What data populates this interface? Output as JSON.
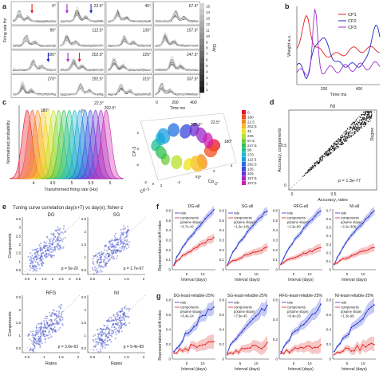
{
  "panel_letters": {
    "a": "a",
    "b": "b",
    "c": "c",
    "d": "d",
    "e": "e",
    "f": "f",
    "g": "g"
  },
  "panel_a": {
    "ylabel": "Firing rate Hz",
    "angles": [
      "0°",
      "22.5°",
      "45°",
      "67.5°",
      "90°",
      "112.5°",
      "135°",
      "157.5°",
      "180°",
      "202.5°",
      "225°",
      "247.5°",
      "270°",
      "292.5°",
      "315°",
      "337.5°"
    ],
    "colorbar_label": "Day",
    "colorbar_ticks": [
      "1",
      "2",
      "3",
      "4",
      "5",
      "6",
      "7",
      "8",
      "9",
      "10",
      "11",
      "12",
      "13",
      "14",
      "15"
    ],
    "x_ticks": [
      "0",
      "200",
      "400"
    ],
    "xlabel": "Time ms",
    "arrows": [
      {
        "cell": 0,
        "color": "#e02020"
      },
      {
        "cell": 1,
        "color": "#a030d0"
      },
      {
        "cell": 1,
        "color": "#1a2ac0"
      },
      {
        "cell": 8,
        "color": "#1a2ac0"
      },
      {
        "cell": 9,
        "color": "#a030d0"
      },
      {
        "cell": 9,
        "color": "#e02020"
      }
    ]
  },
  "panel_b": {
    "ylabel": "Weight a.u.",
    "xlabel": "Time ms",
    "x_ticks": [
      "200",
      "400"
    ],
    "legend": [
      {
        "name": "CP1",
        "color": "#e02020"
      },
      {
        "name": "CP2",
        "color": "#1a2ac0"
      },
      {
        "name": "CP3",
        "color": "#a030d0"
      }
    ]
  },
  "panel_c": {
    "xlabel": "Transformed firing rate (Hz)",
    "ylabel": "Normalized probability",
    "x_ticks": [
      "4",
      "4.5",
      "5",
      "5.5",
      "6"
    ],
    "top_labels": [
      "180°",
      "0°",
      "22.5°",
      "202.5°"
    ],
    "scatter_labels": [
      "202.5°",
      "22.5°",
      "180°",
      "0°"
    ],
    "axis3d": {
      "z": "CP-3",
      "x": "CP-1",
      "y": "CP-2"
    },
    "ticks3d_x": [
      "-2",
      "0",
      "2"
    ],
    "ticks3d_y": [
      "-2",
      "0",
      "2",
      "4"
    ],
    "ticks3d_z": [
      "2",
      "0",
      "-2"
    ],
    "legend": [
      {
        "label": "0",
        "color": "#e8102a"
      },
      {
        "label": "180",
        "color": "#f0501e"
      },
      {
        "label": "22.5",
        "color": "#f58a1e"
      },
      {
        "label": "202.5",
        "color": "#f8b81a"
      },
      {
        "label": "45",
        "color": "#f2e21e"
      },
      {
        "label": "225",
        "color": "#b8e02a"
      },
      {
        "label": "67.5",
        "color": "#6fcf36"
      },
      {
        "label": "247.5",
        "color": "#2fbf50"
      },
      {
        "label": "90",
        "color": "#1fbf90"
      },
      {
        "label": "270",
        "color": "#18b8c8"
      },
      {
        "label": "112.5",
        "color": "#1aa0e0"
      },
      {
        "label": "292.5",
        "color": "#2070e0"
      },
      {
        "label": "135",
        "color": "#3a48d8"
      },
      {
        "label": "315",
        "color": "#6a30d0"
      },
      {
        "label": "157.5",
        "color": "#9a28c8"
      },
      {
        "label": "337.5",
        "color": "#d020a8"
      }
    ]
  },
  "panel_d": {
    "title": "NI",
    "ylabel": "Accuracy, components",
    "xlabel": "Accuracy, rates",
    "pvalue": "p = 1.3e-77",
    "x_ticks": [
      "0",
      "0.5"
    ],
    "y_ticks": [
      "0",
      "0.5"
    ],
    "side_label": "Degree"
  },
  "panel_e": {
    "title": "Tuning curve correlation day(x+7) vs day(x); fisher-z",
    "ylabel": "Components",
    "xlabel": "Rates",
    "subplots": [
      {
        "name": "DG",
        "p": "p = 5e-20",
        "x_ticks": [
          "0.5",
          "1",
          "1.5",
          "2",
          "2.5",
          "3",
          "3.5"
        ],
        "y_ticks": [
          "0.5",
          "1",
          "1.5",
          "2",
          "2.5",
          "3",
          "3.5"
        ]
      },
      {
        "name": "SG",
        "p": "p = 1.7e-67",
        "x_ticks": [
          "0.5",
          "1",
          "1.5",
          "2"
        ],
        "y_ticks": [
          "0.5",
          "1",
          "1.5",
          "2",
          "2.5"
        ]
      },
      {
        "name": "RFG",
        "p": "p = 3.6e-63",
        "x_ticks": [
          "0.5",
          "1",
          "1.5",
          "2"
        ],
        "y_ticks": [
          "0.5",
          "1",
          "1.5",
          "2",
          "2.5"
        ]
      },
      {
        "name": "NI",
        "p": "p = 9.4e-89",
        "x_ticks": [
          "0.5",
          "1",
          "1.5",
          "2"
        ],
        "y_ticks": [
          "0.5",
          "1",
          "1.5",
          "2",
          "2.5"
        ]
      }
    ]
  },
  "panel_f": {
    "ylabel": "Representational drift index",
    "xlabel": "Interval (days)",
    "x_ticks": [
      "5",
      "10"
    ],
    "legend_rate": "rate",
    "legend_comp": "components",
    "legend_same": "p(same slope)",
    "subplots": [
      {
        "title": "DG-all",
        "p": "=5.7e-42",
        "y_ticks": [
          "0",
          "0.1",
          "0.2",
          "0.3",
          "0.4",
          "0.5",
          "0.6"
        ]
      },
      {
        "title": "SG-all",
        "p": "=1.3e-145",
        "y_ticks": [
          "0",
          "0.1",
          "0.2",
          "0.3",
          "0.4",
          "0.5",
          "0.6"
        ]
      },
      {
        "title": "RFG-all",
        "p": "=2.2e-90",
        "y_ticks": [
          "0",
          "0.1",
          "0.2",
          "0.3",
          "0.4",
          "0.5",
          "0.6"
        ]
      },
      {
        "title": "NI-all",
        "p": "=2.2e-308",
        "y_ticks": [
          "0",
          "0.1",
          "0.2",
          "0.3",
          "0.4",
          "0.5",
          "0.6",
          "0.7"
        ]
      }
    ]
  },
  "panel_g": {
    "ylabel": "Representational drift index",
    "xlabel": "Interval (days)",
    "x_ticks": [
      "5",
      "10"
    ],
    "legend_rate": "rate",
    "legend_comp": "components",
    "legend_same": "p(same slope)",
    "subplots": [
      {
        "title": "DG-least-reliable-25%",
        "p": "=6.4e-24",
        "y_ticks": [
          "0",
          "0.2",
          "0.4",
          "0.6",
          "0.8"
        ]
      },
      {
        "title": "SG-least-reliable-25%",
        "p": "=7.9e-45",
        "y_ticks": [
          "0",
          "0.2",
          "0.4",
          "0.6",
          "0.8"
        ]
      },
      {
        "title": "RFG-least-reliable-25%",
        "p": "=6.4e-28",
        "y_ticks": [
          "0",
          "0.2",
          "0.4",
          "0.6"
        ]
      },
      {
        "title": "NI-least-reliable-25%",
        "p": "=1.3e-98",
        "y_ticks": [
          "0",
          "0.2",
          "0.4",
          "0.6",
          "0.8"
        ]
      }
    ]
  }
}
